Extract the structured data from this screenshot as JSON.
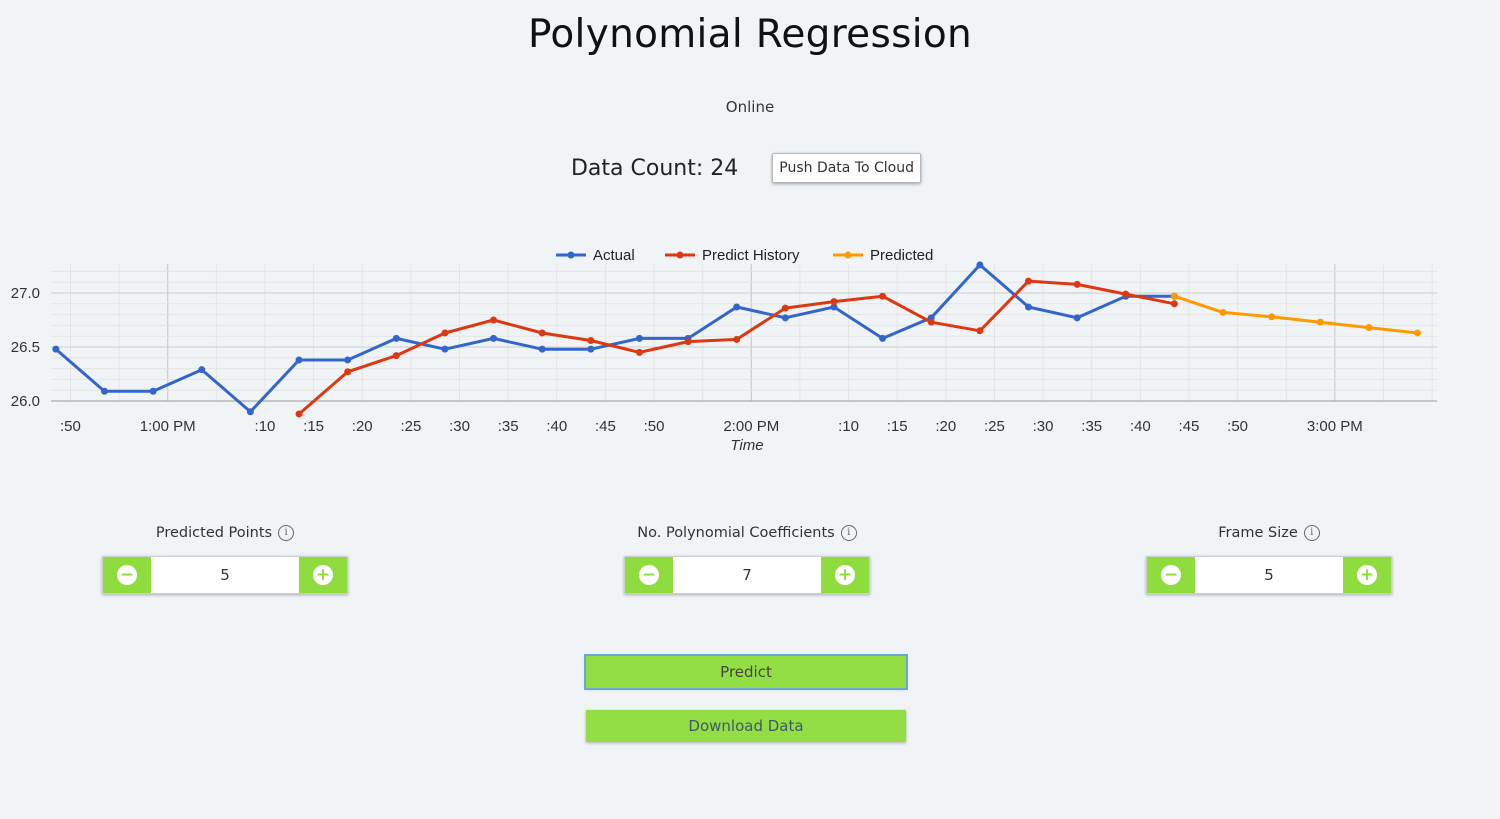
{
  "page": {
    "title": "Polynomial Regression",
    "status": "Online",
    "data_count_label": "Data Count:",
    "data_count_value": "24",
    "push_button": "Push Data To Cloud"
  },
  "controls": {
    "predicted_points": {
      "label": "Predicted Points",
      "value": "5"
    },
    "poly_coefficients": {
      "label": "No. Polynomial Coefficients",
      "value": "7"
    },
    "frame_size": {
      "label": "Frame Size",
      "value": "5"
    },
    "minus_symbol": "−",
    "plus_symbol": "+",
    "info_symbol": "i"
  },
  "buttons": {
    "predict": "Predict",
    "download": "Download Data"
  },
  "colors": {
    "accent_green": "#8fdc3f",
    "actual": "#3366cc",
    "predict_history": "#dc3912",
    "predicted": "#ff9900"
  },
  "chart_data": {
    "type": "line",
    "xlabel": "Time",
    "ylabel": "",
    "ylim": [
      25.9,
      27.25
    ],
    "y_ticks": [
      "26.0",
      "26.5",
      "27.0"
    ],
    "x_ticks": [
      ":50",
      "1:00 PM",
      ":10",
      ":15",
      ":20",
      ":25",
      ":30",
      ":35",
      ":40",
      ":45",
      ":50",
      "2:00 PM",
      ":10",
      ":15",
      ":20",
      ":25",
      ":30",
      ":35",
      ":40",
      ":45",
      ":50",
      "3:00 PM"
    ],
    "x_tick_minutes": [
      -10,
      0,
      10,
      15,
      20,
      25,
      30,
      35,
      40,
      45,
      50,
      60,
      70,
      75,
      80,
      85,
      90,
      95,
      100,
      105,
      110,
      120
    ],
    "x_unit": "minutes after 1:00 PM",
    "grid": true,
    "legend_position": "top",
    "series": [
      {
        "name": "Actual",
        "color": "#3366cc",
        "points": [
          [
            -11.5,
            26.48
          ],
          [
            -6.5,
            26.09
          ],
          [
            -1.5,
            26.09
          ],
          [
            3.5,
            26.29
          ],
          [
            8.5,
            25.9
          ],
          [
            13.5,
            26.38
          ],
          [
            18.5,
            26.38
          ],
          [
            23.5,
            26.58
          ],
          [
            28.5,
            26.48
          ],
          [
            33.5,
            26.58
          ],
          [
            38.5,
            26.48
          ],
          [
            43.5,
            26.48
          ],
          [
            48.5,
            26.58
          ],
          [
            53.5,
            26.58
          ],
          [
            58.5,
            26.87
          ],
          [
            63.5,
            26.77
          ],
          [
            68.5,
            26.87
          ],
          [
            73.5,
            26.58
          ],
          [
            78.5,
            26.77
          ],
          [
            83.5,
            27.26
          ],
          [
            88.5,
            26.87
          ],
          [
            93.5,
            26.77
          ],
          [
            98.5,
            26.97
          ],
          [
            103.5,
            26.97
          ]
        ]
      },
      {
        "name": "Predict History",
        "color": "#dc3912",
        "points": [
          [
            13.5,
            25.88
          ],
          [
            18.5,
            26.27
          ],
          [
            23.5,
            26.42
          ],
          [
            28.5,
            26.63
          ],
          [
            33.5,
            26.75
          ],
          [
            38.5,
            26.63
          ],
          [
            43.5,
            26.56
          ],
          [
            48.5,
            26.45
          ],
          [
            53.5,
            26.55
          ],
          [
            58.5,
            26.57
          ],
          [
            63.5,
            26.86
          ],
          [
            68.5,
            26.92
          ],
          [
            73.5,
            26.97
          ],
          [
            78.5,
            26.73
          ],
          [
            83.5,
            26.65
          ],
          [
            88.5,
            27.11
          ],
          [
            93.5,
            27.08
          ],
          [
            98.5,
            26.99
          ],
          [
            103.5,
            26.9
          ]
        ]
      },
      {
        "name": "Predicted",
        "color": "#ff9900",
        "points": [
          [
            103.5,
            26.97
          ],
          [
            108.5,
            26.82
          ],
          [
            113.5,
            26.78
          ],
          [
            118.5,
            26.73
          ],
          [
            123.5,
            26.68
          ],
          [
            128.5,
            26.63
          ]
        ]
      }
    ]
  }
}
